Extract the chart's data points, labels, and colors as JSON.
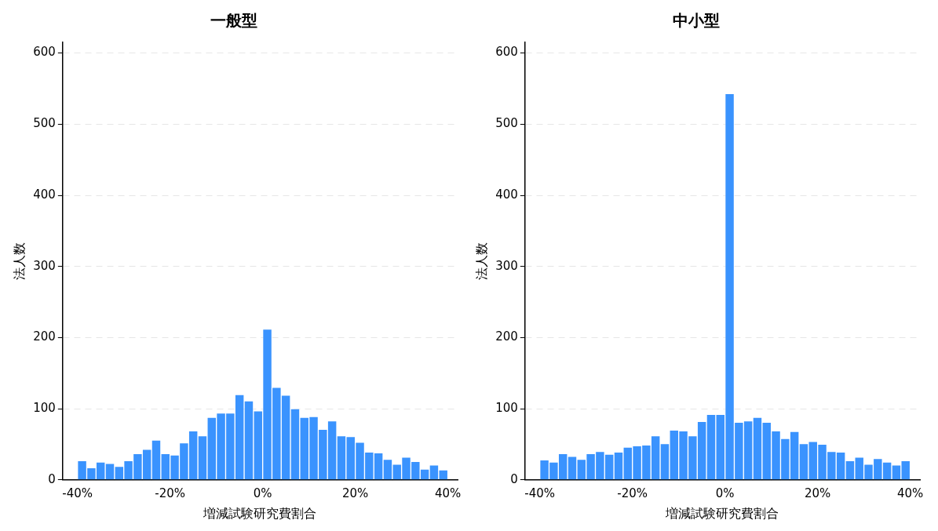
{
  "chart_data": [
    {
      "type": "histogram",
      "title": "一般型",
      "xlabel": "増減試験研究費割合",
      "ylabel": "法人数",
      "color": "#3a93fe",
      "grid": "y",
      "bins": [
        -40,
        -38,
        -36,
        -34,
        -32,
        -30,
        -28,
        -26,
        -24,
        -22,
        -20,
        -18,
        -16,
        -14,
        -12,
        -10,
        -8,
        -6,
        -4,
        -2,
        0,
        2,
        4,
        6,
        8,
        10,
        12,
        14,
        16,
        18,
        20,
        22,
        24,
        26,
        28,
        30,
        32,
        34,
        36,
        38,
        40
      ],
      "values": [
        27,
        17,
        25,
        23,
        19,
        27,
        37,
        43,
        56,
        37,
        35,
        52,
        69,
        62,
        88,
        94,
        94,
        120,
        111,
        97,
        212,
        130,
        119,
        100,
        88,
        89,
        71,
        83,
        62,
        61,
        53,
        39,
        38,
        29,
        22,
        32,
        26,
        15,
        21,
        14
      ],
      "xlim": [
        -43.2,
        42.1
      ],
      "xticks": [
        {
          "value": -40,
          "label": "-40%"
        },
        {
          "value": -20,
          "label": "-20%"
        },
        {
          "value": 0,
          "label": "0%"
        },
        {
          "value": 20,
          "label": "20%"
        },
        {
          "value": 40,
          "label": "40%"
        }
      ],
      "ylim": [
        0,
        615
      ],
      "yticks": [
        0,
        100,
        200,
        300,
        400,
        500,
        600
      ]
    },
    {
      "type": "histogram",
      "title": "中小型",
      "xlabel": "増減試験研究費割合",
      "ylabel": "法人数",
      "color": "#3a93fe",
      "grid": "y",
      "bins": [
        -40,
        -38,
        -36,
        -34,
        -32,
        -30,
        -28,
        -26,
        -24,
        -22,
        -20,
        -18,
        -16,
        -14,
        -12,
        -10,
        -8,
        -6,
        -4,
        -2,
        0,
        2,
        4,
        6,
        8,
        10,
        12,
        14,
        16,
        18,
        20,
        22,
        24,
        26,
        28,
        30,
        32,
        34,
        36,
        38,
        40
      ],
      "values": [
        28,
        25,
        37,
        33,
        29,
        37,
        40,
        36,
        39,
        46,
        48,
        49,
        62,
        51,
        70,
        69,
        62,
        82,
        92,
        92,
        543,
        81,
        83,
        88,
        81,
        69,
        58,
        68,
        51,
        54,
        50,
        40,
        39,
        27,
        32,
        22,
        30,
        25,
        21,
        27
      ],
      "xlim": [
        -43.2,
        42.1
      ],
      "xticks": [
        {
          "value": -40,
          "label": "-40%"
        },
        {
          "value": -20,
          "label": "-20%"
        },
        {
          "value": 0,
          "label": "0%"
        },
        {
          "value": 20,
          "label": "20%"
        },
        {
          "value": 40,
          "label": "40%"
        }
      ],
      "ylim": [
        0,
        615
      ],
      "yticks": [
        0,
        100,
        200,
        300,
        400,
        500,
        600
      ]
    }
  ]
}
